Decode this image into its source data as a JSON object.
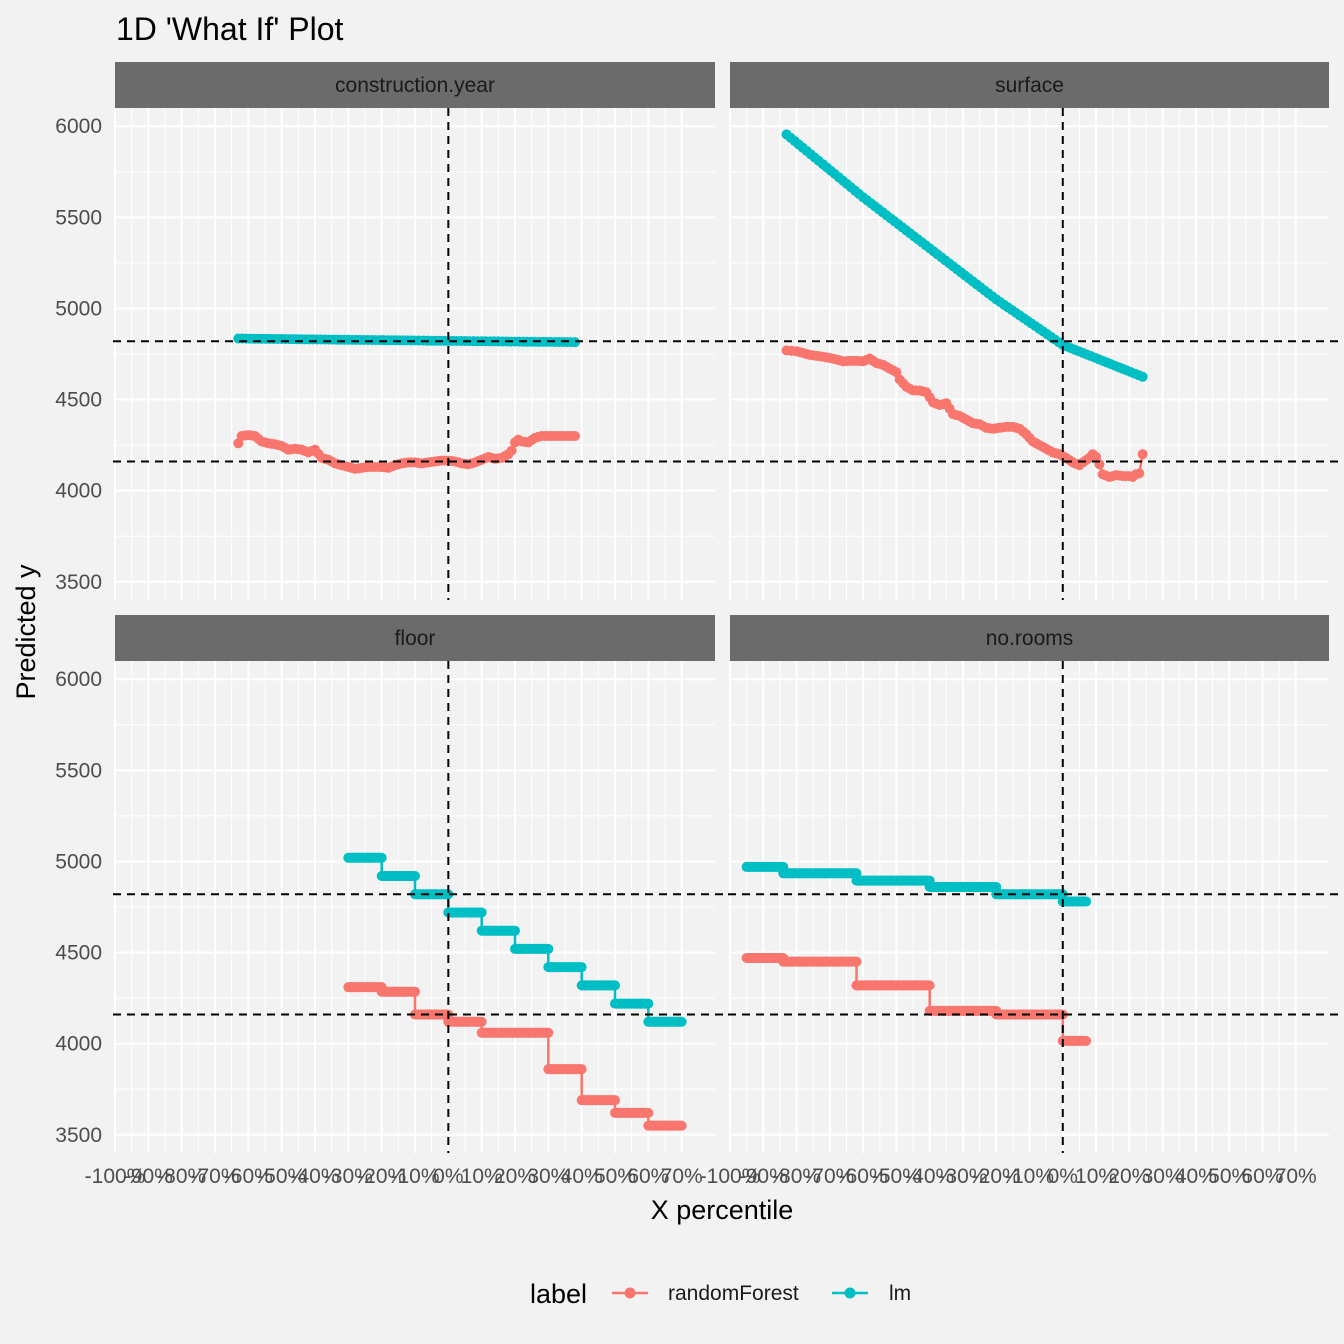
{
  "chart_data": {
    "type": "line",
    "title": "1D 'What If' Plot",
    "xlabel": "X percentile",
    "ylabel": "Predicted y",
    "xlim": [
      -100,
      80
    ],
    "ylim": [
      3400,
      6100
    ],
    "x_tick_values": [
      -100,
      -90,
      -80,
      -70,
      -60,
      -50,
      -40,
      -30,
      -20,
      -10,
      0,
      10,
      20,
      30,
      40,
      50,
      60,
      70
    ],
    "x_tick_labels": [
      "-100%",
      "-90%",
      "-80%",
      "-70%",
      "-60%",
      "-50%",
      "-40%",
      "-30%",
      "-20%",
      "-10%",
      "0%",
      "10%",
      "20%",
      "30%",
      "40%",
      "50%",
      "60%",
      "70%"
    ],
    "y_tick_values": [
      3500,
      4000,
      4500,
      5000,
      5500,
      6000
    ],
    "y_tick_labels": [
      "3500",
      "4000",
      "4500",
      "5000",
      "5500",
      "6000"
    ],
    "reference_lines": {
      "x": [
        0
      ],
      "y": [
        4820,
        4160
      ]
    },
    "legend": {
      "title": "label",
      "position": "bottom",
      "entries": [
        {
          "name": "randomForest",
          "color": "#f8766d"
        },
        {
          "name": "lm",
          "color": "#00bfc4"
        }
      ]
    },
    "facets": [
      {
        "name": "construction.year",
        "series": [
          {
            "name": "randomForest",
            "type": "line",
            "points": [
              [
                -63,
                4260
              ],
              [
                -62,
                4300
              ],
              [
                -60,
                4305
              ],
              [
                -58,
                4300
              ],
              [
                -56,
                4270
              ],
              [
                -54,
                4260
              ],
              [
                -52,
                4255
              ],
              [
                -50,
                4245
              ],
              [
                -48,
                4225
              ],
              [
                -46,
                4230
              ],
              [
                -44,
                4225
              ],
              [
                -42,
                4210
              ],
              [
                -40,
                4225
              ],
              [
                -38,
                4180
              ],
              [
                -36,
                4170
              ],
              [
                -34,
                4150
              ],
              [
                -32,
                4140
              ],
              [
                -30,
                4130
              ],
              [
                -28,
                4120
              ],
              [
                -26,
                4125
              ],
              [
                -24,
                4130
              ],
              [
                -22,
                4130
              ],
              [
                -20,
                4130
              ],
              [
                -18,
                4125
              ],
              [
                -16,
                4140
              ],
              [
                -14,
                4150
              ],
              [
                -12,
                4155
              ],
              [
                -10,
                4155
              ],
              [
                -8,
                4150
              ],
              [
                -6,
                4155
              ],
              [
                -4,
                4160
              ],
              [
                -2,
                4165
              ],
              [
                0,
                4165
              ],
              [
                2,
                4160
              ],
              [
                4,
                4150
              ],
              [
                6,
                4145
              ],
              [
                8,
                4155
              ],
              [
                10,
                4170
              ],
              [
                12,
                4185
              ],
              [
                14,
                4175
              ],
              [
                16,
                4180
              ],
              [
                18,
                4200
              ],
              [
                19,
                4220
              ],
              [
                20,
                4265
              ],
              [
                21,
                4280
              ],
              [
                22,
                4270
              ],
              [
                24,
                4265
              ],
              [
                26,
                4290
              ],
              [
                28,
                4300
              ],
              [
                30,
                4300
              ],
              [
                32,
                4300
              ],
              [
                34,
                4300
              ],
              [
                36,
                4300
              ],
              [
                38,
                4300
              ]
            ]
          },
          {
            "name": "lm",
            "type": "line",
            "points": [
              [
                -63,
                4835
              ],
              [
                -50,
                4832
              ],
              [
                -30,
                4828
              ],
              [
                -10,
                4824
              ],
              [
                0,
                4822
              ],
              [
                10,
                4820
              ],
              [
                20,
                4818
              ],
              [
                38,
                4815
              ]
            ]
          }
        ]
      },
      {
        "name": "surface",
        "series": [
          {
            "name": "randomForest",
            "type": "line",
            "points": [
              [
                -83,
                4770
              ],
              [
                -80,
                4765
              ],
              [
                -78,
                4755
              ],
              [
                -76,
                4745
              ],
              [
                -74,
                4740
              ],
              [
                -72,
                4735
              ],
              [
                -70,
                4728
              ],
              [
                -68,
                4720
              ],
              [
                -66,
                4710
              ],
              [
                -64,
                4712
              ],
              [
                -62,
                4712
              ],
              [
                -60,
                4710
              ],
              [
                -58,
                4725
              ],
              [
                -56,
                4700
              ],
              [
                -54,
                4690
              ],
              [
                -52,
                4670
              ],
              [
                -50,
                4650
              ],
              [
                -49,
                4610
              ],
              [
                -47,
                4570
              ],
              [
                -45,
                4550
              ],
              [
                -43,
                4550
              ],
              [
                -41,
                4540
              ],
              [
                -39,
                4485
              ],
              [
                -37,
                4470
              ],
              [
                -35,
                4480
              ],
              [
                -33,
                4420
              ],
              [
                -31,
                4410
              ],
              [
                -29,
                4390
              ],
              [
                -27,
                4370
              ],
              [
                -25,
                4365
              ],
              [
                -23,
                4345
              ],
              [
                -21,
                4340
              ],
              [
                -19,
                4345
              ],
              [
                -17,
                4350
              ],
              [
                -15,
                4350
              ],
              [
                -13,
                4340
              ],
              [
                -11,
                4310
              ],
              [
                -9,
                4270
              ],
              [
                -7,
                4250
              ],
              [
                -5,
                4230
              ],
              [
                -3,
                4210
              ],
              [
                -1,
                4200
              ],
              [
                1,
                4180
              ],
              [
                3,
                4155
              ],
              [
                5,
                4140
              ],
              [
                6,
                4155
              ],
              [
                8,
                4180
              ],
              [
                9,
                4200
              ],
              [
                10,
                4185
              ],
              [
                11,
                4145
              ],
              [
                12,
                4090
              ],
              [
                14,
                4075
              ],
              [
                16,
                4085
              ],
              [
                18,
                4080
              ],
              [
                20,
                4080
              ],
              [
                21,
                4075
              ],
              [
                22,
                4090
              ],
              [
                23,
                4095
              ],
              [
                24,
                4200
              ]
            ]
          },
          {
            "name": "lm",
            "type": "line",
            "points": [
              [
                -83,
                5955
              ],
              [
                -60,
                5610
              ],
              [
                -40,
                5330
              ],
              [
                -20,
                5050
              ],
              [
                0,
                4800
              ],
              [
                24,
                4625
              ]
            ]
          }
        ]
      },
      {
        "name": "floor",
        "series": [
          {
            "name": "randomForest",
            "type": "step",
            "points": [
              [
                -30,
                4310
              ],
              [
                -20,
                4310
              ],
              [
                -20,
                4285
              ],
              [
                -10,
                4285
              ],
              [
                -10,
                4160
              ],
              [
                0,
                4160
              ],
              [
                0,
                4120
              ],
              [
                10,
                4120
              ],
              [
                10,
                4060
              ],
              [
                30,
                4060
              ],
              [
                30,
                3860
              ],
              [
                40,
                3860
              ],
              [
                40,
                3690
              ],
              [
                50,
                3690
              ],
              [
                50,
                3620
              ],
              [
                60,
                3620
              ],
              [
                60,
                3550
              ],
              [
                70,
                3550
              ]
            ]
          },
          {
            "name": "lm",
            "type": "step",
            "points": [
              [
                -30,
                5020
              ],
              [
                -20,
                5020
              ],
              [
                -20,
                4920
              ],
              [
                -10,
                4920
              ],
              [
                -10,
                4820
              ],
              [
                0,
                4820
              ],
              [
                0,
                4720
              ],
              [
                10,
                4720
              ],
              [
                10,
                4620
              ],
              [
                20,
                4620
              ],
              [
                20,
                4520
              ],
              [
                30,
                4520
              ],
              [
                30,
                4420
              ],
              [
                40,
                4420
              ],
              [
                40,
                4320
              ],
              [
                50,
                4320
              ],
              [
                50,
                4220
              ],
              [
                60,
                4220
              ],
              [
                60,
                4120
              ],
              [
                70,
                4120
              ]
            ]
          }
        ]
      },
      {
        "name": "no.rooms",
        "series": [
          {
            "name": "randomForest",
            "type": "step",
            "points": [
              [
                -95,
                4470
              ],
              [
                -84,
                4470
              ],
              [
                -84,
                4450
              ],
              [
                -62,
                4450
              ],
              [
                -62,
                4320
              ],
              [
                -40,
                4320
              ],
              [
                -40,
                4180
              ],
              [
                -20,
                4180
              ],
              [
                -20,
                4160
              ],
              [
                0,
                4160
              ],
              [
                0,
                4015
              ],
              [
                7,
                4015
              ]
            ]
          },
          {
            "name": "lm",
            "type": "step",
            "points": [
              [
                -95,
                4970
              ],
              [
                -84,
                4970
              ],
              [
                -84,
                4935
              ],
              [
                -62,
                4935
              ],
              [
                -62,
                4895
              ],
              [
                -40,
                4895
              ],
              [
                -40,
                4860
              ],
              [
                -20,
                4860
              ],
              [
                -20,
                4820
              ],
              [
                0,
                4820
              ],
              [
                0,
                4780
              ],
              [
                7,
                4780
              ]
            ]
          }
        ]
      }
    ]
  }
}
